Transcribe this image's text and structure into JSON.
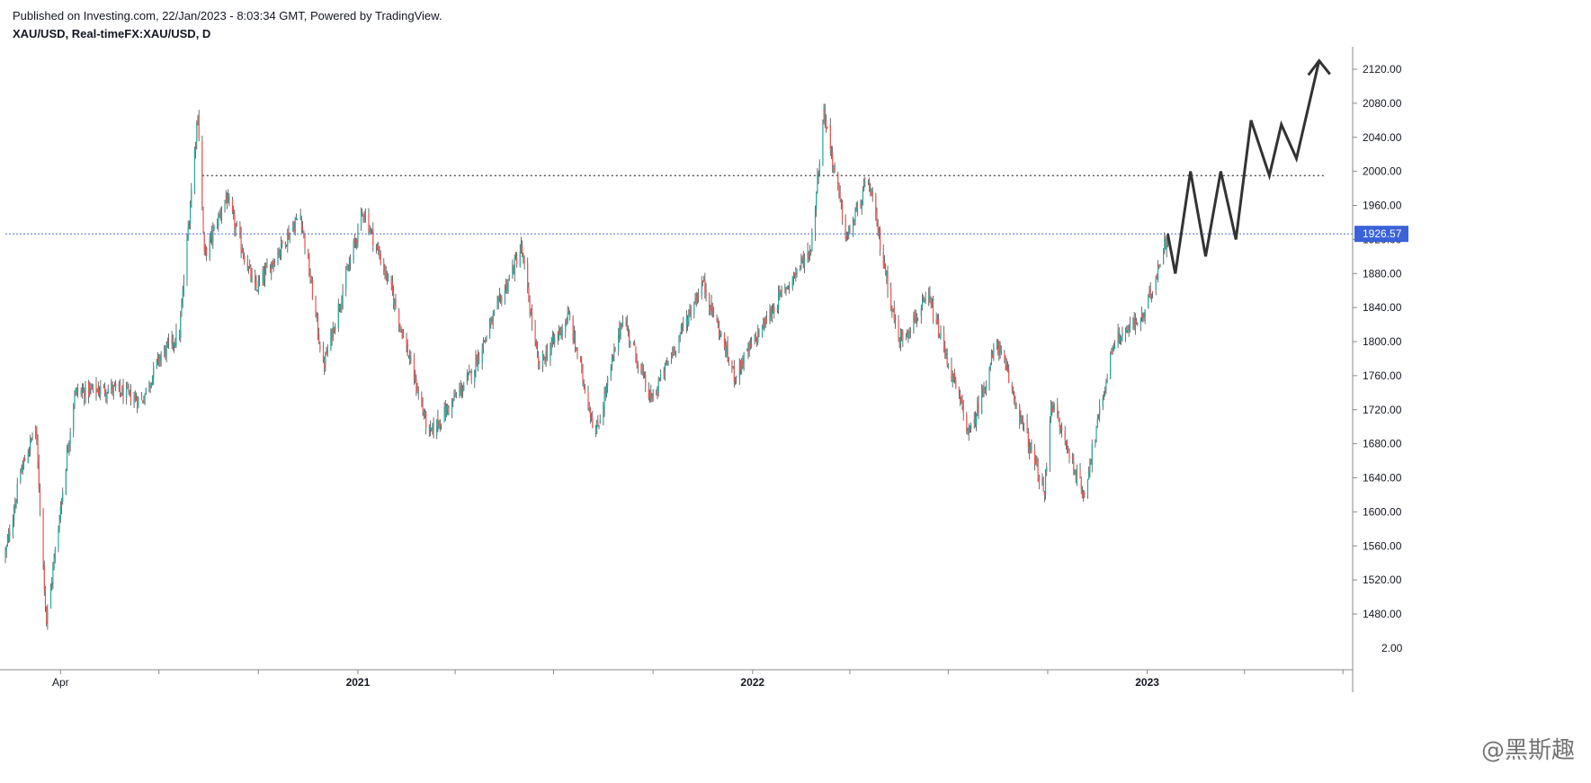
{
  "header": {
    "published": "Published on Investing.com, 22/Jan/2023 - 8:03:34 GMT, Powered by TradingView.",
    "symbol": "XAU/USD, Real-timeFX:XAU/USD, D"
  },
  "watermark": "@黑斯趣",
  "colors": {
    "up": "#26a69a",
    "down": "#ef5350",
    "wick": "#4a4a4a",
    "resistance": "#555555",
    "current_line": "#4a6fdc",
    "price_tag": "#3a62d9",
    "projection": "#333333",
    "axis": "#8a8a8a"
  },
  "chart_data": {
    "type": "candlestick",
    "title": "XAU/USD, Real-timeFX:XAU/USD, D",
    "y_axis": {
      "position": "right",
      "ylim": [
        1440,
        2140
      ],
      "ticks": [
        1480,
        1520,
        1560,
        1600,
        1640,
        1680,
        1720,
        1760,
        1800,
        1840,
        1880,
        1920,
        1960,
        2000,
        2040,
        2080,
        2120
      ],
      "tick_labels": [
        "1480.00",
        "1520.00",
        "1560.00",
        "1600.00",
        "1640.00",
        "1680.00",
        "1720.00",
        "1760.00",
        "1800.00",
        "1840.00",
        "1880.00",
        "1920.00",
        "1960.00",
        "2000.00",
        "2040.00",
        "2080.00",
        "2120.00"
      ],
      "last_label_partial": "2.00"
    },
    "x_axis": {
      "xlim": [
        "2020-02-10",
        "2023-07-10"
      ],
      "labels": [
        {
          "date": "2020-04-01",
          "text": "Apr",
          "bold": false
        },
        {
          "date": "2021-01-01",
          "text": "2021",
          "bold": true
        },
        {
          "date": "2022-01-01",
          "text": "2022",
          "bold": true
        },
        {
          "date": "2023-01-01",
          "text": "2023",
          "bold": true
        }
      ],
      "minor_ticks": [
        "2020-04-01",
        "2020-07-01",
        "2020-10-01",
        "2021-01-01",
        "2021-04-01",
        "2021-07-01",
        "2021-10-01",
        "2022-01-01",
        "2022-04-01",
        "2022-07-01",
        "2022-10-01",
        "2023-01-01",
        "2023-04-01",
        "2023-07-01"
      ]
    },
    "grid": false,
    "current_price": 1926.57,
    "current_price_label": "1926.57",
    "resistance_level": 1995,
    "resistance_range": [
      "2020-08-10",
      "2023-06-15"
    ],
    "price_path": [
      [
        "2020-02-10",
        1550
      ],
      [
        "2020-02-24",
        1645
      ],
      [
        "2020-03-09",
        1700
      ],
      [
        "2020-03-19",
        1470
      ],
      [
        "2020-04-14",
        1740
      ],
      [
        "2020-05-18",
        1745
      ],
      [
        "2020-06-15",
        1730
      ],
      [
        "2020-07-01",
        1780
      ],
      [
        "2020-07-20",
        1810
      ],
      [
        "2020-08-06",
        2070
      ],
      [
        "2020-08-12",
        1900
      ],
      [
        "2020-09-01",
        1970
      ],
      [
        "2020-09-28",
        1860
      ],
      [
        "2020-11-09",
        1950
      ],
      [
        "2020-11-30",
        1770
      ],
      [
        "2021-01-06",
        1955
      ],
      [
        "2021-02-01",
        1860
      ],
      [
        "2021-03-08",
        1690
      ],
      [
        "2021-04-15",
        1760
      ],
      [
        "2021-06-01",
        1910
      ],
      [
        "2021-06-17",
        1770
      ],
      [
        "2021-07-15",
        1830
      ],
      [
        "2021-08-09",
        1690
      ],
      [
        "2021-09-03",
        1830
      ],
      [
        "2021-09-29",
        1730
      ],
      [
        "2021-11-16",
        1870
      ],
      [
        "2021-12-15",
        1760
      ],
      [
        "2022-01-25",
        1850
      ],
      [
        "2022-02-24",
        1910
      ],
      [
        "2022-03-08",
        2070
      ],
      [
        "2022-03-29",
        1920
      ],
      [
        "2022-04-18",
        1990
      ],
      [
        "2022-05-16",
        1800
      ],
      [
        "2022-06-13",
        1850
      ],
      [
        "2022-07-21",
        1690
      ],
      [
        "2022-08-15",
        1800
      ],
      [
        "2022-09-28",
        1620
      ],
      [
        "2022-10-04",
        1730
      ],
      [
        "2022-11-03",
        1620
      ],
      [
        "2022-12-01",
        1800
      ],
      [
        "2022-12-29",
        1830
      ],
      [
        "2023-01-20",
        1926.57
      ]
    ],
    "projection": [
      [
        "2023-01-20",
        1926.57
      ],
      [
        "2023-01-27",
        1880
      ],
      [
        "2023-02-10",
        2000
      ],
      [
        "2023-02-24",
        1900
      ],
      [
        "2023-03-10",
        2000
      ],
      [
        "2023-03-24",
        1920
      ],
      [
        "2023-04-07",
        2060
      ],
      [
        "2023-04-24",
        1995
      ],
      [
        "2023-05-05",
        2055
      ],
      [
        "2023-05-19",
        2015
      ],
      [
        "2023-06-09",
        2130
      ]
    ]
  }
}
